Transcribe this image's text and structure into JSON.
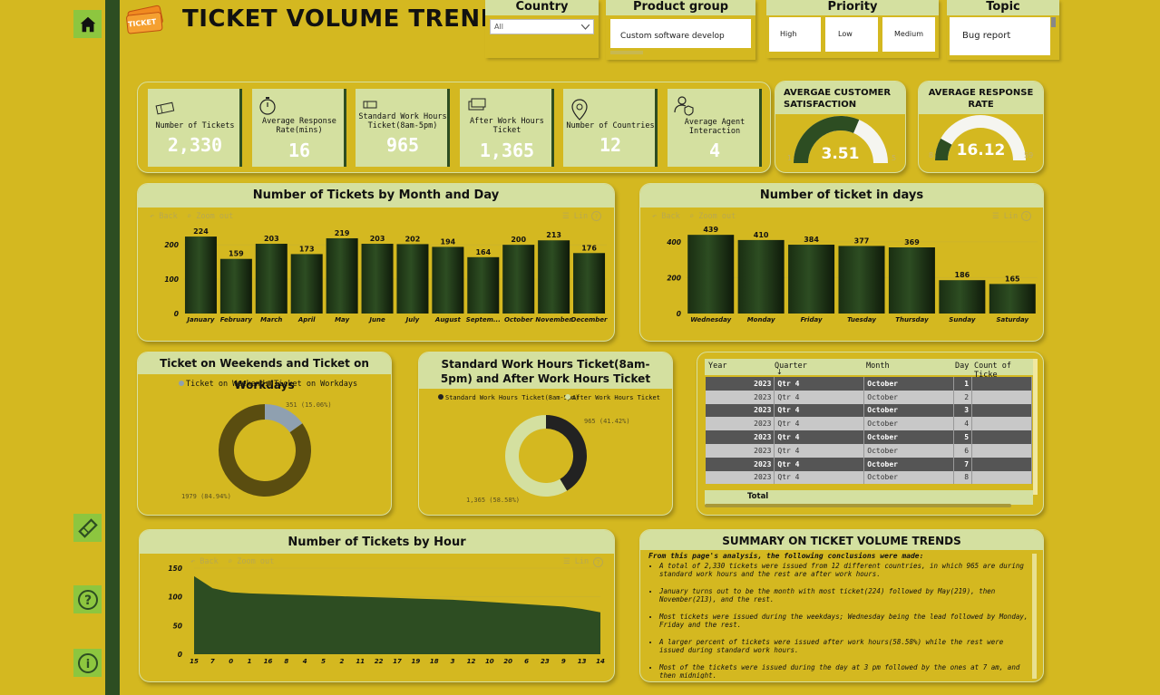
{
  "header": {
    "title": "TICKET VOLUME TRENDS",
    "logo_text": "TICKET"
  },
  "sidebar": {
    "icons": [
      "home-icon",
      "ticket-icon",
      "help-icon",
      "info-icon"
    ]
  },
  "slicers": {
    "country": {
      "title": "Country",
      "value": "All"
    },
    "product_group": {
      "title": "Product group",
      "value": "Custom software develop"
    },
    "priority": {
      "title": "Priority",
      "options": [
        "High",
        "Low",
        "Medium"
      ]
    },
    "topic": {
      "title": "Topic",
      "value": "Bug report"
    }
  },
  "kpis": [
    {
      "label": "Number of Tickets",
      "value": "2,330",
      "icon": "ticket-icon"
    },
    {
      "label": "Average Response Rate(mins)",
      "value": "16",
      "icon": "stopwatch-icon"
    },
    {
      "label": "Standard Work Hours Ticket(8am-5pm)",
      "value": "965",
      "icon": "ticket-icon"
    },
    {
      "label": "After Work Hours Ticket",
      "value": "1,365",
      "icon": "tickets-icon"
    },
    {
      "label": "Number of Countries",
      "value": "12",
      "icon": "map-pin-icon"
    },
    {
      "label": "Average Agent Interaction",
      "value": "4",
      "icon": "agent-icon"
    }
  ],
  "gauges": {
    "satisfaction": {
      "title": "AVERGAE CUSTOMER SATISFACTION",
      "value": "3.51",
      "min": "1",
      "max": "5",
      "fraction": 0.6275
    },
    "response": {
      "title": "AVERAGE RESPONSE RATE",
      "value": "16.12",
      "min": "8",
      "max": "59",
      "fraction": 0.16
    }
  },
  "toolbar": {
    "back": "Back",
    "zoom": "Zoom out",
    "lin": "Lin",
    "help": "?"
  },
  "chart_data": [
    {
      "type": "bar",
      "title": "Number of Tickets by Month and Day",
      "categories": [
        "January",
        "February",
        "March",
        "April",
        "May",
        "June",
        "July",
        "August",
        "Septem...",
        "October",
        "November",
        "December"
      ],
      "values": [
        224,
        159,
        203,
        173,
        219,
        203,
        202,
        194,
        164,
        200,
        213,
        176
      ],
      "yticks": [
        "0",
        "100",
        "200"
      ],
      "ylim": [
        0,
        240
      ]
    },
    {
      "type": "bar",
      "title": "Number of ticket in days",
      "categories": [
        "Wednesday",
        "Monday",
        "Friday",
        "Tuesday",
        "Thursday",
        "Sunday",
        "Saturday"
      ],
      "values": [
        439,
        410,
        384,
        377,
        369,
        186,
        165
      ],
      "yticks": [
        "0",
        "200",
        "400"
      ],
      "ylim": [
        0,
        460
      ]
    },
    {
      "type": "pie",
      "title": "Ticket on Weekends and Ticket on Workdays",
      "series": [
        {
          "name": "Ticket on Weekends",
          "value": 351,
          "label": "351 (15.06%)",
          "color": "#8fa0b0"
        },
        {
          "name": "Ticket on Workdays",
          "value": 1979,
          "label": "1979 (84.94%)",
          "color": "#5a4d10"
        }
      ]
    },
    {
      "type": "pie",
      "title": "Standard Work Hours Ticket(8am-5pm) and After Work Hours Ticket",
      "series": [
        {
          "name": "Standard Work Hours Ticket(8am-5pm)",
          "value": 965,
          "label": "965 (41.42%)",
          "color": "#222222"
        },
        {
          "name": "After Work Hours Ticket",
          "value": 1365,
          "label": "1,365 (58.58%)",
          "color": "#d4e0a0"
        }
      ]
    },
    {
      "type": "area",
      "title": "Number of Tickets by Hour",
      "categories": [
        "15",
        "7",
        "0",
        "1",
        "16",
        "8",
        "4",
        "5",
        "2",
        "11",
        "22",
        "17",
        "19",
        "18",
        "3",
        "12",
        "10",
        "20",
        "6",
        "23",
        "9",
        "13",
        "14"
      ],
      "values": [
        136,
        115,
        108,
        106,
        105,
        104,
        103,
        102,
        101,
        100,
        99,
        98,
        97,
        96,
        95,
        93,
        91,
        89,
        87,
        85,
        83,
        79,
        73
      ],
      "yticks": [
        "0",
        "50",
        "100",
        "150"
      ],
      "ylim": [
        0,
        150
      ]
    }
  ],
  "table": {
    "headers": [
      "Year",
      "Quarter",
      "Month",
      "Day",
      "Count of Ticke"
    ],
    "rows": [
      [
        "2023",
        "Qtr 4",
        "October",
        "1"
      ],
      [
        "2023",
        "Qtr 4",
        "October",
        "2"
      ],
      [
        "2023",
        "Qtr 4",
        "October",
        "3"
      ],
      [
        "2023",
        "Qtr 4",
        "October",
        "4"
      ],
      [
        "2023",
        "Qtr 4",
        "October",
        "5"
      ],
      [
        "2023",
        "Qtr 4",
        "October",
        "6"
      ],
      [
        "2023",
        "Qtr 4",
        "October",
        "7"
      ],
      [
        "2023",
        "Qtr 4",
        "October",
        "8"
      ]
    ],
    "total_label": "Total"
  },
  "summary": {
    "title": "SUMMARY ON TICKET VOLUME TRENDS",
    "intro": "From this page's analysis, the following conclusions were made:",
    "points": [
      "A total of 2,330 tickets were issued from 12 different countries, in which 965 are during standard work hours and the rest are after work hours.",
      "January turns out to be the month with most ticket(224) followed by May(219), then November(213), and the rest.",
      "Most tickets were issued during the weekdays; Wednesday being the lead followed by Monday, Friday and the rest.",
      "A larger percent of tickets were issued after work hours(58.58%) while the rest were issued during standard work hours.",
      "Most of the tickets were issued during the day at 3 pm followed by the ones at 7 am, and then midnight."
    ]
  }
}
